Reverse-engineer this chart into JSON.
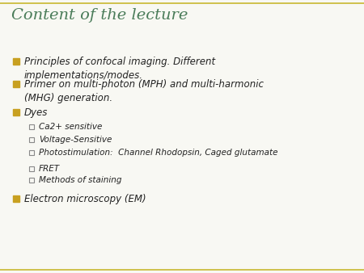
{
  "title": "Content of the lecture",
  "title_color": "#4a7c59",
  "title_fontsize": 14,
  "background_color": "#f8f8f3",
  "border_color": "#c8b830",
  "bullet_color": "#c8a020",
  "subbullet_color": "#888888",
  "text_color": "#222222",
  "bullet_items": [
    {
      "level": 1,
      "text": "Principles of confocal imaging. Different\nimplementations/modes."
    },
    {
      "level": 1,
      "text": "Primer on multi-photon (MPH) and multi-harmonic\n(MHG) generation."
    },
    {
      "level": 1,
      "text": "Dyes"
    },
    {
      "level": 2,
      "text": "Ca2+ sensitive"
    },
    {
      "level": 2,
      "text": "Voltage-Sensitive"
    },
    {
      "level": 2,
      "text": "Photostimulation:  Channel Rhodopsin, Caged glutamate"
    },
    {
      "level": 2,
      "text": "FRET"
    },
    {
      "level": 2,
      "text": "Methods of staining"
    },
    {
      "level": 1,
      "text": "Electron microscopy (EM)"
    }
  ],
  "figwidth": 4.5,
  "figheight": 3.38,
  "dpi": 100
}
